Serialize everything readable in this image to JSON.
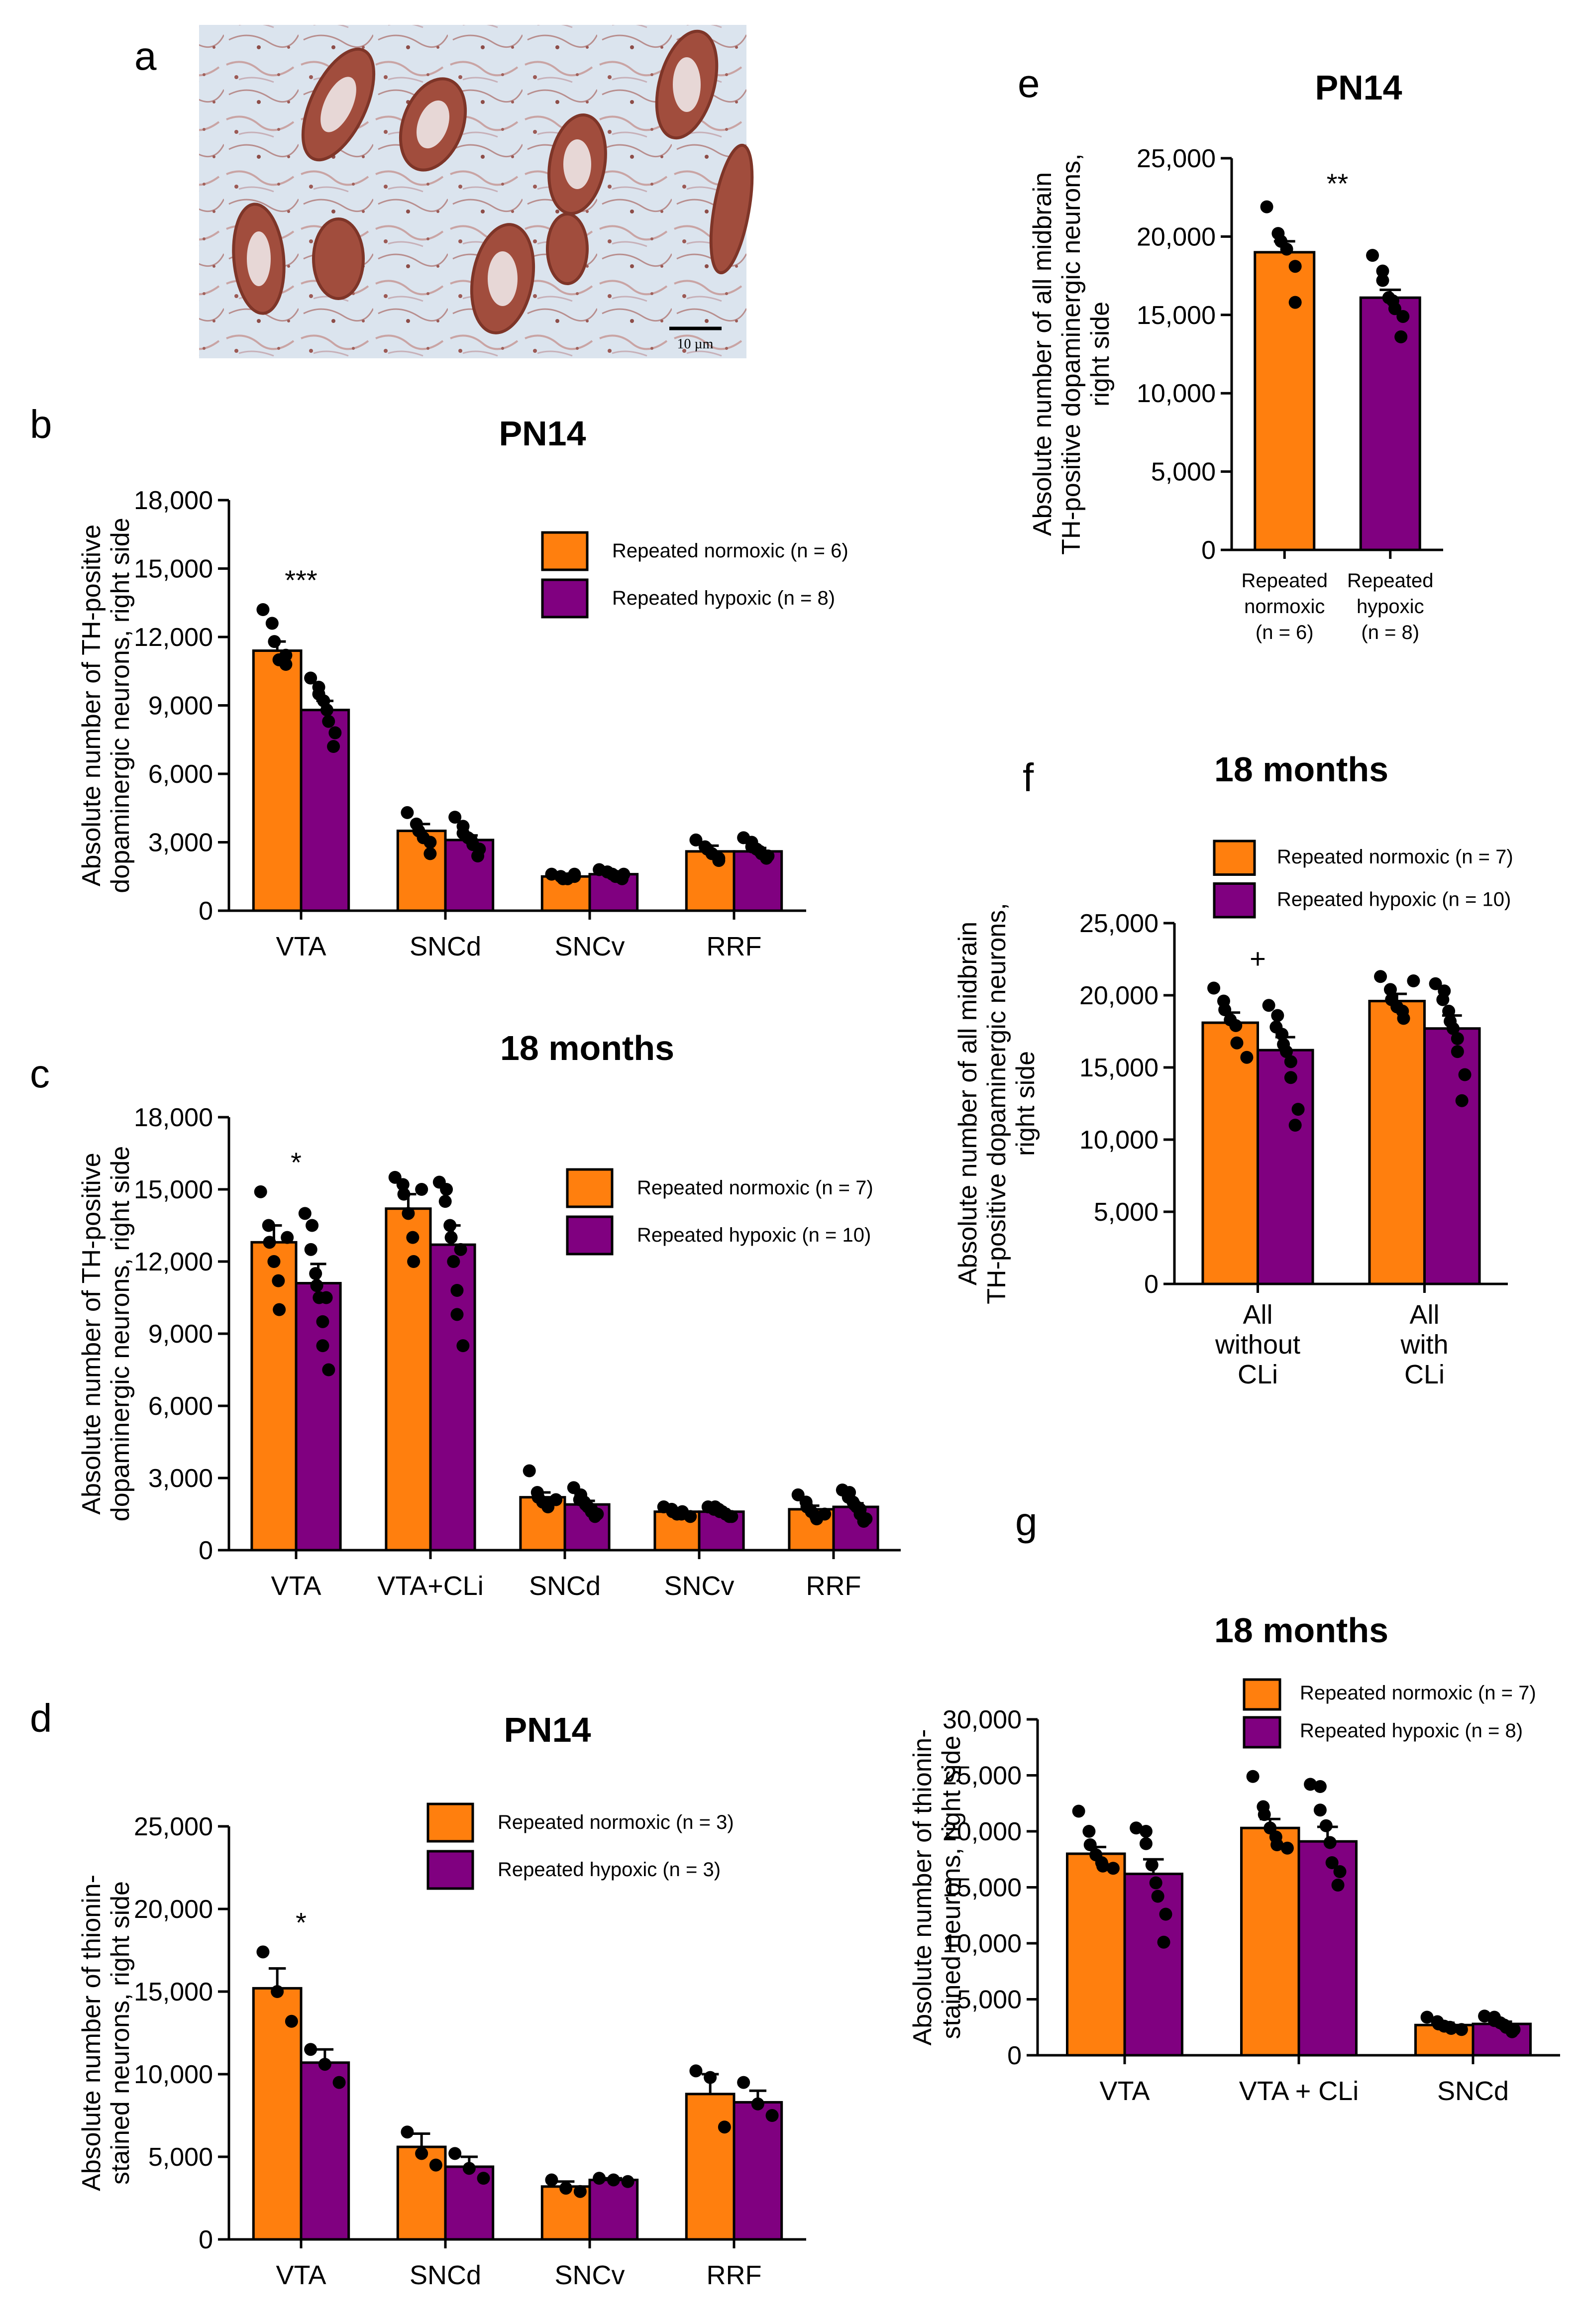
{
  "colors": {
    "normoxic": "#FF7F0E",
    "hypoxic": "#800080",
    "axis": "#000000",
    "dot": "#000000"
  },
  "photo": {
    "label": "a",
    "scale_text": "10 µm"
  },
  "chart_data": [
    {
      "id": "b",
      "label": "b",
      "type": "bar",
      "title": "PN14",
      "ylabel_lines": [
        "Absolute number of TH-positive",
        "dopaminergic neurons, right side"
      ],
      "ylim": [
        0,
        18000
      ],
      "yticks": [
        0,
        3000,
        6000,
        9000,
        12000,
        15000,
        18000
      ],
      "ytick_labels": [
        "0",
        "3,000",
        "6,000",
        "9,000",
        "12,000",
        "15,000",
        "18,000"
      ],
      "categories": [
        "VTA",
        "SNCd",
        "SNCv",
        "RRF"
      ],
      "legend": [
        "Repeated normoxic (n = 6)",
        "Repeated hypoxic (n = 8)"
      ],
      "series": [
        {
          "name": "Repeated normoxic",
          "values": [
            11400,
            3500,
            1500,
            2600
          ],
          "sem": [
            400,
            300,
            100,
            250
          ],
          "points": [
            [
              13200,
              12600,
              11800,
              11000,
              10800,
              11200
            ],
            [
              4300,
              3800,
              3500,
              3200,
              3000,
              2500
            ],
            [
              1600,
              1500,
              1400,
              1400,
              1600,
              1500
            ],
            [
              3100,
              2800,
              2700,
              2500,
              2300,
              2200
            ]
          ]
        },
        {
          "name": "Repeated hypoxic",
          "values": [
            8800,
            3100,
            1600,
            2600
          ],
          "sem": [
            400,
            200,
            100,
            150
          ],
          "points": [
            [
              10200,
              9800,
              9500,
              9200,
              8800,
              8300,
              7800,
              7200
            ],
            [
              4100,
              3700,
              3400,
              3200,
              3100,
              2900,
              2700,
              2400
            ],
            [
              1800,
              1700,
              1700,
              1600,
              1500,
              1500,
              1600,
              1400
            ],
            [
              3200,
              3000,
              2800,
              2700,
              2600,
              2500,
              2400,
              2300
            ]
          ]
        }
      ],
      "annotations": [
        {
          "cat": 0,
          "text": "***"
        }
      ]
    },
    {
      "id": "c",
      "label": "c",
      "type": "bar",
      "title": "18 months",
      "ylabel_lines": [
        "Absolute number of TH-positive",
        "dopaminergic neurons, right side"
      ],
      "ylim": [
        0,
        18000
      ],
      "yticks": [
        0,
        3000,
        6000,
        9000,
        12000,
        15000,
        18000
      ],
      "ytick_labels": [
        "0",
        "3,000",
        "6,000",
        "9,000",
        "12,000",
        "15,000",
        "18,000"
      ],
      "categories": [
        "VTA",
        "VTA+CLi",
        "SNCd",
        "SNCv",
        "RRF"
      ],
      "legend": [
        "Repeated normoxic (n = 7)",
        "Repeated hypoxic (n = 10)"
      ],
      "series": [
        {
          "name": "Repeated normoxic",
          "values": [
            12800,
            14200,
            2200,
            1600,
            1700
          ],
          "sem": [
            700,
            600,
            200,
            100,
            150
          ],
          "points": [
            [
              14900,
              13500,
              12800,
              12000,
              11200,
              10000,
              13000
            ],
            [
              15500,
              15200,
              14800,
              14000,
              13000,
              12000,
              15000
            ],
            [
              3300,
              2400,
              2200,
              2000,
              1900,
              1800,
              2100
            ],
            [
              1800,
              1700,
              1600,
              1500,
              1500,
              1600,
              1400
            ],
            [
              2300,
              2000,
              1800,
              1600,
              1400,
              1300,
              1500
            ]
          ]
        },
        {
          "name": "Repeated hypoxic",
          "values": [
            11100,
            12700,
            1900,
            1600,
            1800
          ],
          "sem": [
            800,
            800,
            150,
            100,
            150
          ],
          "points": [
            [
              14000,
              13500,
              12500,
              11500,
              11000,
              10500,
              9500,
              8500,
              7500,
              10500
            ],
            [
              15300,
              15000,
              14500,
              13500,
              13000,
              12000,
              10800,
              9800,
              8500,
              12500
            ],
            [
              2600,
              2300,
              2100,
              2000,
              1900,
              1800,
              1700,
              1600,
              1500,
              1400
            ],
            [
              1800,
              1800,
              1700,
              1700,
              1600,
              1600,
              1500,
              1500,
              1400,
              1400
            ],
            [
              2500,
              2400,
              2200,
              2000,
              1900,
              1800,
              1700,
              1500,
              1300,
              1200
            ]
          ]
        }
      ],
      "annotations": [
        {
          "cat": 0,
          "text": "*"
        }
      ]
    },
    {
      "id": "d",
      "label": "d",
      "type": "bar",
      "title": "PN14",
      "ylabel_lines": [
        "Absolute number of thionin-",
        "stained neurons, right side"
      ],
      "ylim": [
        0,
        25000
      ],
      "yticks": [
        0,
        5000,
        10000,
        15000,
        20000,
        25000
      ],
      "ytick_labels": [
        "0",
        "5,000",
        "10,000",
        "15,000",
        "20,000",
        "25,000"
      ],
      "categories": [
        "VTA",
        "SNCd",
        "SNCv",
        "RRF"
      ],
      "legend": [
        "Repeated normoxic (n = 3)",
        "Repeated hypoxic (n = 3)"
      ],
      "series": [
        {
          "name": "Repeated normoxic",
          "values": [
            15200,
            5600,
            3200,
            8800
          ],
          "sem": [
            1200,
            800,
            300,
            1200
          ],
          "points": [
            [
              17400,
              15000,
              13200
            ],
            [
              6500,
              5200,
              4500
            ],
            [
              3600,
              3100,
              2900
            ],
            [
              10200,
              9800,
              6800
            ]
          ]
        },
        {
          "name": "Repeated hypoxic",
          "values": [
            10700,
            4400,
            3600,
            8300
          ],
          "sem": [
            800,
            600,
            100,
            700
          ],
          "points": [
            [
              11500,
              10600,
              9500
            ],
            [
              5200,
              4300,
              3700
            ],
            [
              3700,
              3600,
              3500
            ],
            [
              9500,
              8200,
              7500
            ]
          ]
        }
      ],
      "annotations": [
        {
          "cat": 0,
          "text": "*"
        }
      ]
    },
    {
      "id": "e",
      "label": "e",
      "type": "bar",
      "title": "PN14",
      "ylabel_lines": [
        "Absolute number of all midbrain",
        "TH-positive dopaminergic neurons,",
        "right side"
      ],
      "ylim": [
        0,
        25000
      ],
      "yticks": [
        0,
        5000,
        10000,
        15000,
        20000,
        25000
      ],
      "ytick_labels": [
        "0",
        "5,000",
        "10,000",
        "15,000",
        "20,000",
        "25,000"
      ],
      "categories": [
        "Repeated normoxic (n = 6)",
        "Repeated hypoxic (n = 8)"
      ],
      "category_lines": [
        [
          "Repeated",
          "normoxic",
          "(n = 6)"
        ],
        [
          "Repeated",
          "hypoxic",
          "(n = 8)"
        ]
      ],
      "bars": [
        {
          "series": "Repeated normoxic",
          "value": 19000,
          "sem": 700,
          "points": [
            21900,
            20200,
            19700,
            19200,
            18100,
            15800
          ]
        },
        {
          "series": "Repeated hypoxic",
          "value": 16100,
          "sem": 500,
          "points": [
            18800,
            17800,
            17200,
            16100,
            15900,
            15400,
            14900,
            13600
          ]
        }
      ],
      "annotations": [
        {
          "cat": 0.5,
          "text": "**"
        }
      ]
    },
    {
      "id": "f",
      "label": "f",
      "type": "bar",
      "title": "18 months",
      "ylabel_lines": [
        "Absolute number of all midbrain",
        "TH-positive dopaminergic neurons,",
        "right side"
      ],
      "ylim": [
        0,
        25000
      ],
      "yticks": [
        0,
        5000,
        10000,
        15000,
        20000,
        25000
      ],
      "ytick_labels": [
        "0",
        "5,000",
        "10,000",
        "15,000",
        "20,000",
        "25,000"
      ],
      "categories": [
        "All without CLi",
        "All with CLi"
      ],
      "category_lines": [
        [
          "All",
          "without",
          "CLi"
        ],
        [
          "All",
          "with",
          "CLi"
        ]
      ],
      "legend": [
        "Repeated normoxic (n = 7)",
        "Repeated hypoxic (n = 10)"
      ],
      "series": [
        {
          "name": "Repeated normoxic",
          "values": [
            18100,
            19600
          ],
          "sem": [
            700,
            500
          ],
          "points": [
            [
              20500,
              19600,
              19000,
              18300,
              17900,
              16700,
              15700
            ],
            [
              21300,
              20400,
              19700,
              19200,
              18900,
              18400,
              21000
            ]
          ]
        },
        {
          "name": "Repeated hypoxic",
          "values": [
            16200,
            17700
          ],
          "sem": [
            900,
            900
          ],
          "points": [
            [
              19300,
              18600,
              17800,
              17300,
              16600,
              16100,
              15400,
              14300,
              12100,
              11000
            ],
            [
              20800,
              20300,
              19700,
              18900,
              18200,
              17700,
              17000,
              16100,
              14500,
              12700
            ]
          ]
        }
      ],
      "annotations": [
        {
          "cat": 0,
          "text": "+"
        }
      ]
    },
    {
      "id": "g",
      "label": "g",
      "type": "bar",
      "title": "18 months",
      "ylabel_lines": [
        "Absolute number of thionin-",
        "stained neurons, right side"
      ],
      "ylim": [
        0,
        30000
      ],
      "yticks": [
        0,
        5000,
        10000,
        15000,
        20000,
        25000,
        30000
      ],
      "ytick_labels": [
        "0",
        "5,000",
        "10,000",
        "15,000",
        "20,000",
        "25,000",
        "30,000"
      ],
      "categories": [
        "VTA",
        "VTA + CLi",
        "SNCd"
      ],
      "legend": [
        "Repeated normoxic (n = 7)",
        "Repeated hypoxic (n = 8)"
      ],
      "series": [
        {
          "name": "Repeated normoxic",
          "values": [
            18000,
            20300,
            2700
          ],
          "sem": [
            600,
            800,
            200
          ],
          "points": [
            [
              21800,
              20000,
              18800,
              17900,
              17200,
              16900,
              16700
            ],
            [
              24900,
              22200,
              21500,
              20300,
              19500,
              18800,
              18500
            ],
            [
              3400,
              3000,
              2800,
              2600,
              2500,
              2400,
              2300
            ]
          ]
        },
        {
          "name": "Repeated hypoxic",
          "values": [
            16200,
            19100,
            2800
          ],
          "sem": [
            1300,
            1300,
            200
          ],
          "points": [
            [
              20300,
              20000,
              18900,
              17000,
              15400,
              14200,
              12600,
              10100
            ],
            [
              24200,
              24000,
              21900,
              20500,
              19000,
              17200,
              16400,
              15200
            ],
            [
              3500,
              3400,
              3100,
              2900,
              2700,
              2500,
              2300,
              2100
            ]
          ]
        }
      ],
      "annotations": []
    }
  ]
}
